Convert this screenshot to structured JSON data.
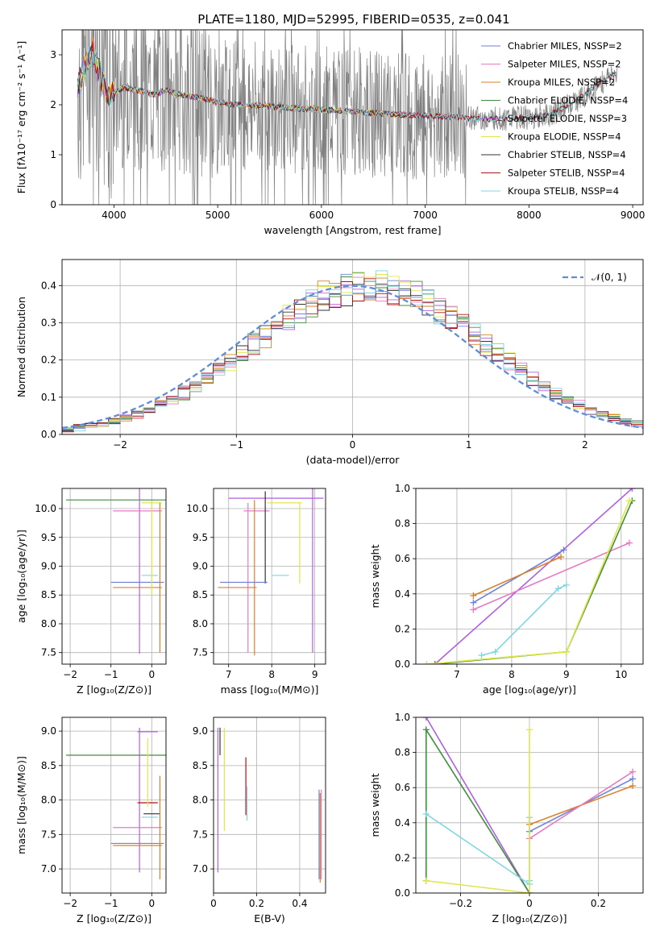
{
  "figure_title": "PLATE=1180, MJD=52995, FIBERID=0535, z=0.041",
  "colors": {
    "Chabrier MILES": "#6f82d6",
    "Salpeter MILES": "#e67ac4",
    "Kroupa MILES": "#d9822b",
    "Chabrier ELODIE": "#3f8f3f",
    "Salpeter ELODIE": "#b15fe0",
    "Kroupa ELODIE": "#e2e64a",
    "Chabrier STELIB": "#333333",
    "Salpeter STELIB": "#b01010",
    "Kroupa STELIB": "#7fd6e3",
    "gaussian": "#5f8ed8",
    "data": "#808080"
  },
  "chart_data": [
    {
      "id": "spectrum",
      "type": "line",
      "title": "PLATE=1180, MJD=52995, FIBERID=0535, z=0.041",
      "xlabel": "wavelength [Angstrom, rest frame]",
      "ylabel": "Flux [f$_\\lambda$10$^{-17}$ erg cm$^{-2}$ s$^{-1}$ A$^{-1}$]",
      "xlim": [
        3500,
        9100
      ],
      "ylim": [
        0,
        3.5
      ],
      "xticks": [
        4000,
        5000,
        6000,
        7000,
        8000,
        9000
      ],
      "yticks": [
        0,
        1,
        2,
        3
      ],
      "grid": false,
      "legend_position": "top-right",
      "series": [
        {
          "name": "Chabrier MILES, N$_{SSP}$=2",
          "color_key": "Chabrier MILES"
        },
        {
          "name": "Salpeter MILES, N$_{SSP}$=2",
          "color_key": "Salpeter MILES"
        },
        {
          "name": "Kroupa MILES, N$_{SSP}$=2",
          "color_key": "Kroupa MILES"
        },
        {
          "name": "Chabrier ELODIE, N$_{SSP}$=4",
          "color_key": "Chabrier ELODIE"
        },
        {
          "name": "Salpeter ELODIE, N$_{SSP}$=3",
          "color_key": "Salpeter ELODIE"
        },
        {
          "name": "Kroupa ELODIE, N$_{SSP}$=4",
          "color_key": "Kroupa ELODIE"
        },
        {
          "name": "Chabrier STELIB, N$_{SSP}$=4",
          "color_key": "Chabrier STELIB"
        },
        {
          "name": "Salpeter STELIB, N$_{SSP}$=4",
          "color_key": "Salpeter STELIB"
        },
        {
          "name": "Kroupa STELIB, N$_{SSP}$=4",
          "color_key": "Kroupa STELIB"
        }
      ],
      "model_continuum": [
        [
          3650,
          2.35
        ],
        [
          3700,
          2.6
        ],
        [
          3750,
          2.9
        ],
        [
          3800,
          3.1
        ],
        [
          3850,
          2.7
        ],
        [
          3900,
          2.4
        ],
        [
          3950,
          2.15
        ],
        [
          4000,
          2.25
        ],
        [
          4100,
          2.35
        ],
        [
          4200,
          2.3
        ],
        [
          4300,
          2.25
        ],
        [
          4400,
          2.2
        ],
        [
          4500,
          2.3
        ],
        [
          4600,
          2.22
        ],
        [
          4700,
          2.18
        ],
        [
          4800,
          2.15
        ],
        [
          4900,
          2.1
        ],
        [
          5000,
          2.05
        ],
        [
          5200,
          2.0
        ],
        [
          5400,
          1.98
        ],
        [
          5600,
          1.95
        ],
        [
          5800,
          1.92
        ],
        [
          6000,
          1.9
        ],
        [
          6200,
          1.88
        ],
        [
          6400,
          1.85
        ],
        [
          6600,
          1.82
        ],
        [
          6800,
          1.8
        ],
        [
          7000,
          1.78
        ],
        [
          7200,
          1.76
        ],
        [
          7400,
          1.74
        ],
        [
          7600,
          1.72
        ],
        [
          7800,
          1.72
        ],
        [
          8000,
          1.75
        ],
        [
          8200,
          1.8
        ],
        [
          8400,
          2.0
        ],
        [
          8600,
          2.3
        ],
        [
          8800,
          2.6
        ]
      ]
    },
    {
      "id": "residuals",
      "type": "line",
      "xlabel": "(data-model)/error",
      "ylabel": "Normed distribution",
      "xlim": [
        -2.5,
        2.5
      ],
      "ylim": [
        0,
        0.47
      ],
      "xticks": [
        -2,
        -1,
        0,
        1,
        2
      ],
      "yticks": [
        0.0,
        0.1,
        0.2,
        0.3,
        0.4
      ],
      "grid": true,
      "legend_position": "top-right",
      "legend": "$\\mathcal{N}(0,1)$",
      "gaussian": {
        "mean": 0,
        "sigma": 1
      }
    },
    {
      "id": "age_vs_Z",
      "type": "scatter",
      "xlabel": "Z [log$_{10}$(Z/Z$_\\odot$)]",
      "ylabel": "age  [log$_{10}$(age/yr)]",
      "xlim": [
        -2.2,
        0.35
      ],
      "ylim": [
        7.3,
        10.35
      ],
      "xticks": [
        -2,
        -1,
        0
      ],
      "yticks": [
        7.5,
        8.0,
        8.5,
        9.0,
        9.5,
        10.0
      ],
      "grid": true,
      "errorbars": [
        {
          "x": -0.05,
          "y": 10.15,
          "xerr": 2.05,
          "yerr": 0,
          "color_key": "Chabrier ELODIE"
        },
        {
          "x": -0.3,
          "y": 10.18,
          "xerr": 0,
          "yerr": 2.7,
          "color_key": "Salpeter ELODIE"
        },
        {
          "x": -0.35,
          "y": 9.96,
          "xerr": 0.6,
          "yerr": 0,
          "color_key": "Salpeter MILES"
        },
        {
          "x": 0.0,
          "y": 10.1,
          "xerr": 0.25,
          "yerr": 0,
          "color_key": "Kroupa ELODIE"
        },
        {
          "x": -0.05,
          "y": 8.84,
          "xerr": 0.2,
          "yerr": 0,
          "color_key": "Kroupa STELIB"
        },
        {
          "x": -0.35,
          "y": 8.72,
          "xerr": 0.65,
          "yerr": 0,
          "color_key": "Chabrier MILES"
        },
        {
          "x": -0.35,
          "y": 8.63,
          "xerr": 0.6,
          "yerr": 0,
          "color_key": "Kroupa MILES"
        },
        {
          "x": 0.2,
          "y": 8.8,
          "xerr": 0,
          "yerr": 1.3,
          "color_key": "Kroupa MILES"
        },
        {
          "x": 0.0,
          "y": 9.3,
          "xerr": 0,
          "yerr": 0.8,
          "color_key": "Kroupa ELODIE"
        }
      ]
    },
    {
      "id": "age_vs_mass",
      "type": "scatter",
      "xlabel": "mass [log$_{10}$(M/M$_\\odot$)]",
      "xlim": [
        6.65,
        9.25
      ],
      "ylim": [
        7.3,
        10.35
      ],
      "xticks": [
        7,
        8,
        9
      ],
      "yticks": [
        7.5,
        8.0,
        8.5,
        9.0,
        9.5,
        10.0
      ],
      "grid": true,
      "errorbars": [
        {
          "x": 8.1,
          "y": 10.18,
          "xerr": 1.1,
          "yerr": 0,
          "color_key": "Salpeter ELODIE"
        },
        {
          "x": 8.95,
          "y": 10.1,
          "xerr": 0,
          "yerr": 2.6,
          "color_key": "Salpeter ELODIE"
        },
        {
          "x": 8.3,
          "y": 10.1,
          "xerr": 0.4,
          "yerr": 0,
          "color_key": "Kroupa ELODIE"
        },
        {
          "x": 7.65,
          "y": 9.96,
          "xerr": 0.3,
          "yerr": 0,
          "color_key": "Salpeter MILES"
        },
        {
          "x": 7.45,
          "y": 8.8,
          "xerr": 0,
          "yerr": 1.3,
          "color_key": "Salpeter MILES"
        },
        {
          "x": 7.6,
          "y": 8.8,
          "xerr": 0,
          "yerr": 1.35,
          "color_key": "Kroupa MILES"
        },
        {
          "x": 7.85,
          "y": 9.5,
          "xerr": 0,
          "yerr": 0.8,
          "color_key": "Chabrier STELIB"
        },
        {
          "x": 8.2,
          "y": 8.84,
          "xerr": 0.2,
          "yerr": 0,
          "color_key": "Kroupa STELIB"
        },
        {
          "x": 7.35,
          "y": 8.72,
          "xerr": 0.55,
          "yerr": 0,
          "color_key": "Chabrier MILES"
        },
        {
          "x": 7.2,
          "y": 8.63,
          "xerr": 0.45,
          "yerr": 0,
          "color_key": "Kroupa MILES"
        },
        {
          "x": 8.65,
          "y": 9.4,
          "xerr": 0,
          "yerr": 0.7,
          "color_key": "Kroupa ELODIE"
        }
      ]
    },
    {
      "id": "massweight_vs_age",
      "type": "line",
      "xlabel": "age  [log$_{10}$(age/yr)]",
      "ylabel": "mass weight",
      "xlim": [
        6.25,
        10.4
      ],
      "ylim": [
        0.0,
        1.0
      ],
      "xticks": [
        7,
        8,
        9,
        10
      ],
      "yticks": [
        0.0,
        0.2,
        0.4,
        0.6,
        0.8,
        1.0
      ],
      "grid": true,
      "series": [
        {
          "color_key": "Salpeter ELODIE",
          "x": [
            6.6,
            10.2
          ],
          "y": [
            0.0,
            1.0
          ]
        },
        {
          "color_key": "Chabrier MILES",
          "x": [
            7.3,
            8.95
          ],
          "y": [
            0.35,
            0.65
          ]
        },
        {
          "color_key": "Kroupa MILES",
          "x": [
            7.3,
            8.9
          ],
          "y": [
            0.39,
            0.61
          ]
        },
        {
          "color_key": "Salpeter MILES",
          "x": [
            7.3,
            10.15
          ],
          "y": [
            0.31,
            0.69
          ]
        },
        {
          "color_key": "Kroupa STELIB",
          "x": [
            7.45,
            7.7,
            8.85,
            9.0
          ],
          "y": [
            0.05,
            0.07,
            0.43,
            0.45
          ]
        },
        {
          "color_key": "Chabrier ELODIE",
          "x": [
            6.6,
            9.0,
            10.2
          ],
          "y": [
            0.0,
            0.07,
            0.93
          ]
        },
        {
          "color_key": "Kroupa ELODIE",
          "x": [
            6.45,
            9.0,
            10.15
          ],
          "y": [
            0.0,
            0.07,
            0.93
          ]
        }
      ]
    },
    {
      "id": "mass_vs_Z",
      "type": "scatter",
      "xlabel": "Z [log$_{10}$(Z/Z$_\\odot$)]",
      "ylabel": "mass [log$_{10}$(M/M$_\\odot$)]",
      "xlim": [
        -2.2,
        0.35
      ],
      "ylim": [
        6.65,
        9.2
      ],
      "xticks": [
        -2,
        -1,
        0
      ],
      "yticks": [
        7.0,
        7.5,
        8.0,
        8.5,
        9.0
      ],
      "grid": true,
      "errorbars": [
        {
          "x": -0.05,
          "y": 8.65,
          "xerr": 2.05,
          "yerr": 0,
          "color_key": "Chabrier ELODIE"
        },
        {
          "x": -0.1,
          "y": 8.99,
          "xerr": 0.25,
          "yerr": 0,
          "color_key": "Salpeter ELODIE"
        },
        {
          "x": -0.3,
          "y": 8.0,
          "xerr": 0,
          "yerr": 1.05,
          "color_key": "Salpeter ELODIE"
        },
        {
          "x": -0.35,
          "y": 7.6,
          "xerr": 0.6,
          "yerr": 0,
          "color_key": "Salpeter MILES"
        },
        {
          "x": -0.35,
          "y": 7.37,
          "xerr": 0.65,
          "yerr": 0,
          "color_key": "Chabrier MILES"
        },
        {
          "x": -0.35,
          "y": 7.34,
          "xerr": 0.6,
          "yerr": 0,
          "color_key": "Kroupa MILES"
        },
        {
          "x": -0.1,
          "y": 7.96,
          "xerr": 0.25,
          "yerr": 0,
          "color_key": "Salpeter STELIB"
        },
        {
          "x": 0.0,
          "y": 7.8,
          "xerr": 0.2,
          "yerr": 0,
          "color_key": "Chabrier STELIB"
        },
        {
          "x": -0.05,
          "y": 7.75,
          "xerr": 0.2,
          "yerr": 0,
          "color_key": "Kroupa STELIB"
        },
        {
          "x": 0.2,
          "y": 7.6,
          "xerr": 0,
          "yerr": 0.75,
          "color_key": "Kroupa MILES"
        },
        {
          "x": -0.1,
          "y": 8.4,
          "xerr": 0,
          "yerr": 0.5,
          "color_key": "Kroupa ELODIE"
        }
      ]
    },
    {
      "id": "mass_vs_ebv",
      "type": "scatter",
      "xlabel": "E(B-V)",
      "xlim": [
        0.0,
        0.52
      ],
      "ylim": [
        6.65,
        9.2
      ],
      "xticks": [
        0.0,
        0.2,
        0.4
      ],
      "yticks": [
        7.0,
        7.5,
        8.0,
        8.5,
        9.0
      ],
      "grid": true,
      "errorbars": [
        {
          "x": 0.02,
          "y": 8.0,
          "xerr": 0,
          "yerr": 1.05,
          "color_key": "Salpeter ELODIE"
        },
        {
          "x": 0.03,
          "y": 8.85,
          "xerr": 0,
          "yerr": 0.2,
          "color_key": "Chabrier STELIB"
        },
        {
          "x": 0.05,
          "y": 8.3,
          "xerr": 0,
          "yerr": 0.75,
          "color_key": "Kroupa ELODIE"
        },
        {
          "x": 0.15,
          "y": 8.2,
          "xerr": 0,
          "yerr": 0.42,
          "color_key": "Salpeter STELIB"
        },
        {
          "x": 0.155,
          "y": 7.95,
          "xerr": 0,
          "yerr": 0.25,
          "color_key": "Kroupa STELIB"
        },
        {
          "x": 0.49,
          "y": 7.5,
          "xerr": 0,
          "yerr": 0.65,
          "color_key": "Chabrier MILES"
        },
        {
          "x": 0.495,
          "y": 7.45,
          "xerr": 0,
          "yerr": 0.65,
          "color_key": "Kroupa MILES"
        },
        {
          "x": 0.5,
          "y": 7.5,
          "xerr": 0,
          "yerr": 0.65,
          "color_key": "Salpeter MILES"
        }
      ]
    },
    {
      "id": "massweight_vs_Z",
      "type": "line",
      "xlabel": "Z [log$_{10}$(Z/Z$_\\odot$)]",
      "ylabel": "mass weight",
      "xlim": [
        -0.33,
        0.33
      ],
      "ylim": [
        0.0,
        1.0
      ],
      "xticks": [
        -0.2,
        0.0,
        0.2
      ],
      "yticks": [
        0.0,
        0.2,
        0.4,
        0.6,
        0.8,
        1.0
      ],
      "grid": true,
      "series": [
        {
          "color_key": "Salpeter ELODIE",
          "x": [
            -0.3,
            0.0
          ],
          "y": [
            1.0,
            0.0
          ]
        },
        {
          "color_key": "Chabrier ELODIE",
          "x": [
            -0.3,
            -0.3,
            0.0
          ],
          "y": [
            0.07,
            0.93,
            0.0
          ]
        },
        {
          "color_key": "Kroupa STELIB",
          "x": [
            -0.3,
            0.0,
            0.0,
            0.0
          ],
          "y": [
            0.45,
            0.05,
            0.43,
            0.07
          ]
        },
        {
          "color_key": "Chabrier MILES",
          "x": [
            0.0,
            0.3
          ],
          "y": [
            0.35,
            0.65
          ]
        },
        {
          "color_key": "Kroupa MILES",
          "x": [
            0.0,
            0.3
          ],
          "y": [
            0.39,
            0.61
          ]
        },
        {
          "color_key": "Salpeter MILES",
          "x": [
            0.0,
            0.3
          ],
          "y": [
            0.31,
            0.69
          ]
        },
        {
          "color_key": "Kroupa ELODIE",
          "x": [
            -0.3,
            0.0,
            0.0
          ],
          "y": [
            0.07,
            0.0,
            0.93
          ]
        }
      ]
    }
  ]
}
